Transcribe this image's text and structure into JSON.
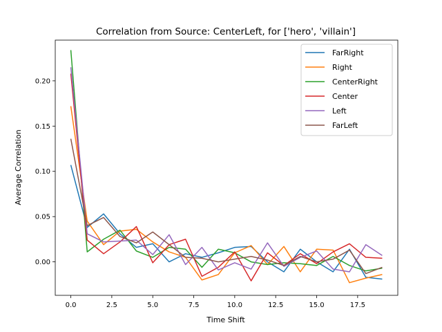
{
  "chart_data": {
    "type": "line",
    "title": "Correlation from Source: CenterLeft, for ['hero', 'villain']",
    "xlabel": "Time Shift",
    "ylabel": "Average Correlation",
    "xlim": [
      -0.95,
      19.95
    ],
    "ylim": [
      -0.037,
      0.245
    ],
    "xticks": [
      0.0,
      2.5,
      5.0,
      7.5,
      10.0,
      12.5,
      15.0,
      17.5
    ],
    "xtick_labels": [
      "0.0",
      "2.5",
      "5.0",
      "7.5",
      "10.0",
      "12.5",
      "15.0",
      "17.5"
    ],
    "yticks": [
      0.0,
      0.05,
      0.1,
      0.15,
      0.2
    ],
    "ytick_labels": [
      "0.00",
      "0.05",
      "0.10",
      "0.15",
      "0.20"
    ],
    "grid": false,
    "legend_position": "top-right",
    "x": [
      0,
      1,
      2,
      3,
      4,
      5,
      6,
      7,
      8,
      9,
      10,
      11,
      12,
      13,
      14,
      15,
      16,
      17,
      18,
      19
    ],
    "series": [
      {
        "name": "FarRight",
        "color": "#1f77b4",
        "values": [
          0.107,
          0.038,
          0.053,
          0.031,
          0.016,
          0.02,
          0.0,
          0.009,
          0.005,
          0.01,
          0.016,
          0.017,
          0.0,
          -0.011,
          0.014,
          0.0,
          -0.011,
          0.014,
          -0.017,
          -0.019
        ]
      },
      {
        "name": "Right",
        "color": "#ff7f0e",
        "values": [
          0.172,
          0.045,
          0.019,
          0.034,
          0.036,
          0.022,
          0.011,
          0.005,
          -0.02,
          -0.014,
          0.01,
          0.018,
          -0.003,
          0.017,
          -0.011,
          0.014,
          0.013,
          -0.023,
          -0.018,
          -0.014
        ]
      },
      {
        "name": "CenterRight",
        "color": "#2ca02c",
        "values": [
          0.234,
          0.011,
          0.025,
          0.035,
          0.012,
          0.005,
          0.016,
          0.014,
          -0.006,
          0.014,
          0.01,
          0.0,
          -0.003,
          -0.001,
          -0.002,
          -0.004,
          0.006,
          -0.004,
          -0.01,
          -0.007
        ]
      },
      {
        "name": "Center",
        "color": "#d62728",
        "values": [
          0.208,
          0.024,
          0.009,
          0.022,
          0.039,
          -0.001,
          0.019,
          0.025,
          -0.016,
          -0.006,
          0.011,
          -0.021,
          0.01,
          -0.004,
          0.009,
          -0.002,
          0.011,
          0.02,
          0.005,
          0.004
        ]
      },
      {
        "name": "Left",
        "color": "#9467bd",
        "values": [
          0.215,
          0.031,
          0.022,
          0.023,
          0.024,
          0.008,
          0.03,
          -0.003,
          0.016,
          -0.009,
          -0.001,
          -0.008,
          0.021,
          -0.005,
          0.005,
          0.012,
          -0.008,
          -0.011,
          0.019,
          0.007
        ]
      },
      {
        "name": "FarLeft",
        "color": "#8c564b",
        "values": [
          0.136,
          0.04,
          0.049,
          0.028,
          0.021,
          0.033,
          0.019,
          0.005,
          0.004,
          0.0,
          0.003,
          0.006,
          0.002,
          -0.004,
          0.006,
          0.0,
          0.003,
          0.013,
          -0.013,
          -0.006
        ]
      }
    ]
  }
}
